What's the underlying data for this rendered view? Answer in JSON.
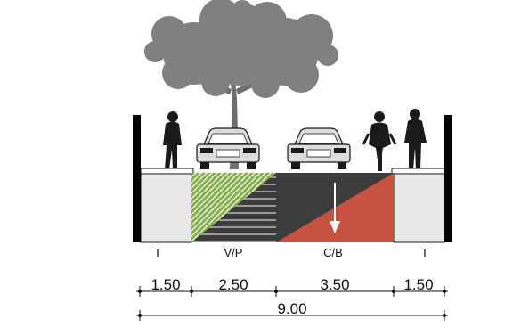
{
  "segments": [
    {
      "label": "T",
      "width": "1.50",
      "fill": "#e8e8e8"
    },
    {
      "label": "V/P",
      "width": "2.50",
      "fill": "#87b04f"
    },
    {
      "label": "C/B",
      "width": "3.50",
      "fill": "#c85242"
    },
    {
      "label": "T",
      "width": "1.50",
      "fill": "#e8e8e8"
    }
  ],
  "total_width": "9.00",
  "colors": {
    "asphalt": "#3c3c3c",
    "wall": "#000000",
    "tree": "#777777",
    "lane_arrow": "#ffffff"
  },
  "icons": [
    "tree-icon",
    "car-icon",
    "pedestrian-icon",
    "cyclist-icon",
    "direction-arrow-icon"
  ]
}
